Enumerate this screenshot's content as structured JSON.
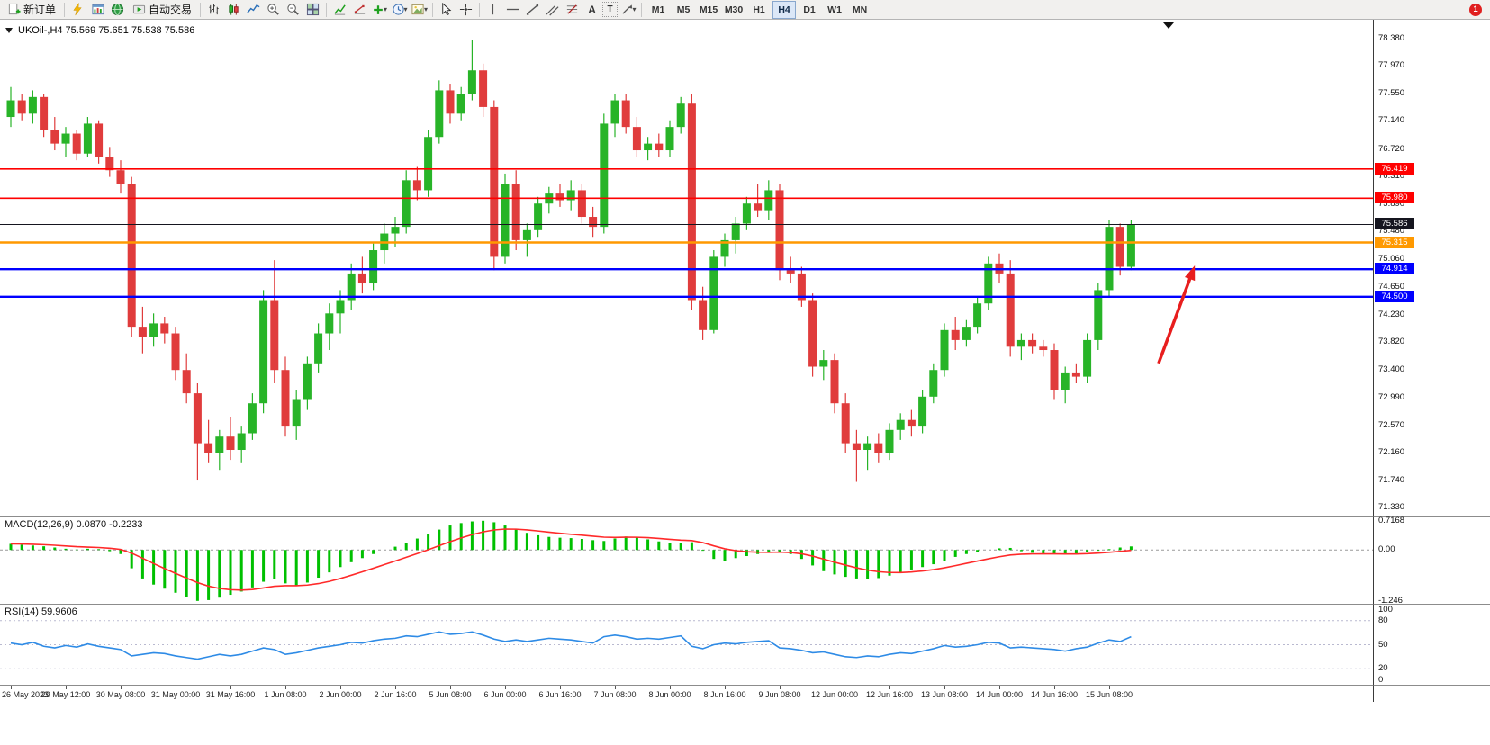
{
  "toolbar": {
    "new_order_label": "新订单",
    "auto_trading_label": "自动交易",
    "text_tool_label": "A",
    "label_tool_label": "T",
    "timeframes": [
      "M1",
      "M5",
      "M15",
      "M30",
      "H1",
      "H4",
      "D1",
      "W1",
      "MN"
    ],
    "active_timeframe": "H4",
    "notification_count": "1",
    "icon_names": [
      "new-order-icon",
      "lightning-icon",
      "chart-window-icon",
      "globe-icon",
      "auto-trading-icon",
      "bar-chart-icon",
      "candlestick-chart-icon",
      "line-chart-icon",
      "zoom-in-icon",
      "zoom-out-icon",
      "tile-windows-icon",
      "indicators-icon",
      "objects-icon",
      "add-indicator-icon",
      "clock-icon",
      "template-icon",
      "cursor-icon",
      "crosshair-icon",
      "vertical-line-icon",
      "horizontal-line-icon",
      "trendline-icon",
      "channel-icon",
      "fibonacci-icon",
      "text-icon",
      "label-icon",
      "arrow-shape-icon",
      "notification-badge"
    ]
  },
  "chart": {
    "title": "UKOil-,H4 75.569 75.651 75.538 75.586"
  },
  "indicators": {
    "macd_label": "MACD(12,26,9) 0.0870 -0.2233",
    "rsi_label": "RSI(14) 59.9606"
  },
  "chart_data": {
    "type": "candlestick",
    "symbol": "UKOil-",
    "timeframe": "H4",
    "current_ohlc": {
      "open": 75.569,
      "high": 75.651,
      "low": 75.538,
      "close": 75.586
    },
    "ylim": [
      71.2,
      78.66
    ],
    "price_axis_ticks": [
      78.38,
      77.97,
      77.55,
      77.14,
      76.72,
      76.31,
      75.89,
      75.48,
      75.06,
      74.65,
      74.23,
      73.82,
      73.4,
      72.99,
      72.57,
      72.16,
      71.74,
      71.33
    ],
    "colors": {
      "bull": "#28B428",
      "bear": "#E03C3C"
    },
    "hlines": [
      {
        "price": 76.419,
        "color": "#FF0000",
        "width": 1.6,
        "label": "76.419"
      },
      {
        "price": 75.98,
        "color": "#FF0000",
        "width": 1.6,
        "label": "75.980"
      },
      {
        "price": 75.586,
        "color": "#15151F",
        "width": 1,
        "label": "75.586"
      },
      {
        "price": 75.315,
        "color": "#FF9900",
        "width": 2.6,
        "label": "75.315"
      },
      {
        "price": 74.914,
        "color": "#0000FF",
        "width": 2.4,
        "label": "74.914"
      },
      {
        "price": 74.5,
        "color": "#0000FF",
        "width": 2.4,
        "label": "74.500"
      }
    ],
    "annotation_arrow": {
      "from_index": 104.5,
      "from_price": 73.5,
      "to_index": 107.8,
      "to_price": 74.97,
      "color": "#E81E1E"
    },
    "time_label_step": 5,
    "time_labels": [
      "26 May 2023",
      "29 May 12:00",
      "30 May 08:00",
      "31 May 00:00",
      "31 May 16:00",
      "1 Jun 08:00",
      "2 Jun 00:00",
      "2 Jun 16:00",
      "5 Jun 08:00",
      "6 Jun 00:00",
      "6 Jun 16:00",
      "7 Jun 08:00",
      "8 Jun 00:00",
      "8 Jun 16:00",
      "9 Jun 08:00",
      "12 Jun 00:00",
      "12 Jun 16:00",
      "13 Jun 08:00",
      "14 Jun 00:00",
      "14 Jun 16:00",
      "15 Jun 08:00"
    ],
    "candles": [
      [
        77.2,
        77.65,
        77.05,
        77.45
      ],
      [
        77.45,
        77.55,
        77.15,
        77.25
      ],
      [
        77.25,
        77.6,
        77.1,
        77.5
      ],
      [
        77.5,
        77.55,
        76.9,
        77.0
      ],
      [
        77.0,
        77.2,
        76.7,
        76.8
      ],
      [
        76.8,
        77.05,
        76.6,
        76.95
      ],
      [
        76.95,
        77.0,
        76.55,
        76.65
      ],
      [
        76.65,
        77.2,
        76.6,
        77.1
      ],
      [
        77.1,
        77.15,
        76.5,
        76.6
      ],
      [
        76.6,
        76.75,
        76.3,
        76.4
      ],
      [
        76.4,
        76.55,
        76.05,
        76.2
      ],
      [
        76.2,
        76.3,
        73.9,
        74.05
      ],
      [
        74.05,
        74.35,
        73.65,
        73.9
      ],
      [
        73.9,
        74.25,
        73.75,
        74.1
      ],
      [
        74.1,
        74.2,
        73.8,
        73.95
      ],
      [
        73.95,
        74.05,
        73.25,
        73.4
      ],
      [
        73.4,
        73.65,
        72.9,
        73.05
      ],
      [
        73.05,
        73.2,
        71.74,
        72.3
      ],
      [
        72.3,
        72.65,
        72.0,
        72.15
      ],
      [
        72.15,
        72.5,
        71.9,
        72.4
      ],
      [
        72.4,
        72.7,
        72.05,
        72.2
      ],
      [
        72.2,
        72.55,
        72.0,
        72.45
      ],
      [
        72.45,
        73.05,
        72.35,
        72.9
      ],
      [
        72.9,
        74.6,
        72.75,
        74.45
      ],
      [
        74.45,
        75.05,
        73.2,
        73.4
      ],
      [
        73.4,
        73.6,
        72.4,
        72.55
      ],
      [
        72.55,
        73.1,
        72.35,
        72.95
      ],
      [
        72.95,
        73.6,
        72.8,
        73.5
      ],
      [
        73.5,
        74.1,
        73.35,
        73.95
      ],
      [
        73.95,
        74.4,
        73.7,
        74.25
      ],
      [
        74.25,
        74.6,
        73.95,
        74.45
      ],
      [
        74.45,
        75.0,
        74.3,
        74.85
      ],
      [
        74.85,
        75.1,
        74.55,
        74.7
      ],
      [
        74.7,
        75.3,
        74.6,
        75.2
      ],
      [
        75.2,
        75.6,
        75.0,
        75.45
      ],
      [
        75.45,
        75.7,
        75.25,
        75.55
      ],
      [
        75.55,
        76.4,
        75.45,
        76.25
      ],
      [
        76.25,
        76.45,
        75.95,
        76.1
      ],
      [
        76.1,
        77.0,
        76.0,
        76.9
      ],
      [
        76.9,
        77.75,
        76.8,
        77.6
      ],
      [
        77.6,
        77.7,
        77.1,
        77.25
      ],
      [
        77.25,
        77.65,
        77.15,
        77.55
      ],
      [
        77.55,
        78.35,
        77.45,
        77.9
      ],
      [
        77.9,
        78.0,
        77.2,
        77.35
      ],
      [
        77.35,
        77.45,
        74.9,
        75.1
      ],
      [
        75.1,
        76.35,
        75.0,
        76.2
      ],
      [
        76.2,
        76.4,
        75.2,
        75.35
      ],
      [
        75.35,
        75.6,
        75.1,
        75.5
      ],
      [
        75.5,
        76.0,
        75.4,
        75.9
      ],
      [
        75.9,
        76.15,
        75.75,
        76.05
      ],
      [
        76.05,
        76.2,
        75.85,
        75.95
      ],
      [
        75.95,
        76.25,
        75.8,
        76.1
      ],
      [
        76.1,
        76.2,
        75.6,
        75.7
      ],
      [
        75.7,
        75.85,
        75.4,
        75.55
      ],
      [
        75.55,
        77.25,
        75.45,
        77.1
      ],
      [
        77.1,
        77.55,
        76.9,
        77.45
      ],
      [
        77.45,
        77.55,
        76.95,
        77.05
      ],
      [
        77.05,
        77.2,
        76.6,
        76.7
      ],
      [
        76.7,
        76.9,
        76.55,
        76.8
      ],
      [
        76.8,
        76.95,
        76.6,
        76.7
      ],
      [
        76.7,
        77.15,
        76.6,
        77.05
      ],
      [
        77.05,
        77.5,
        76.95,
        77.4
      ],
      [
        77.4,
        77.55,
        74.3,
        74.45
      ],
      [
        74.45,
        74.65,
        73.85,
        74.0
      ],
      [
        74.0,
        75.2,
        73.95,
        75.1
      ],
      [
        75.1,
        75.45,
        74.95,
        75.35
      ],
      [
        75.35,
        75.7,
        75.15,
        75.6
      ],
      [
        75.6,
        76.0,
        75.5,
        75.9
      ],
      [
        75.9,
        76.2,
        75.7,
        75.8
      ],
      [
        75.8,
        76.25,
        75.65,
        76.1
      ],
      [
        76.1,
        76.2,
        74.75,
        74.9
      ],
      [
        74.9,
        75.1,
        74.7,
        74.85
      ],
      [
        74.85,
        74.95,
        74.35,
        74.45
      ],
      [
        74.45,
        74.55,
        73.3,
        73.45
      ],
      [
        73.45,
        73.7,
        73.25,
        73.55
      ],
      [
        73.55,
        73.65,
        72.75,
        72.9
      ],
      [
        72.9,
        73.05,
        72.15,
        72.3
      ],
      [
        72.3,
        72.5,
        71.72,
        72.2
      ],
      [
        72.2,
        72.4,
        71.9,
        72.3
      ],
      [
        72.3,
        72.45,
        72.0,
        72.15
      ],
      [
        72.15,
        72.6,
        72.05,
        72.5
      ],
      [
        72.5,
        72.75,
        72.35,
        72.65
      ],
      [
        72.65,
        72.8,
        72.4,
        72.55
      ],
      [
        72.55,
        73.1,
        72.45,
        73.0
      ],
      [
        73.0,
        73.5,
        72.9,
        73.4
      ],
      [
        73.4,
        74.1,
        73.3,
        74.0
      ],
      [
        74.0,
        74.2,
        73.7,
        73.85
      ],
      [
        73.85,
        74.15,
        73.75,
        74.05
      ],
      [
        74.05,
        74.5,
        73.95,
        74.4
      ],
      [
        74.4,
        75.1,
        74.3,
        75.0
      ],
      [
        75.0,
        75.15,
        74.7,
        74.85
      ],
      [
        74.85,
        75.05,
        73.6,
        73.75
      ],
      [
        73.75,
        73.95,
        73.55,
        73.85
      ],
      [
        73.85,
        73.95,
        73.65,
        73.75
      ],
      [
        73.75,
        73.85,
        73.6,
        73.7
      ],
      [
        73.7,
        73.8,
        72.95,
        73.1
      ],
      [
        73.1,
        73.45,
        72.9,
        73.35
      ],
      [
        73.35,
        73.5,
        73.2,
        73.3
      ],
      [
        73.3,
        73.95,
        73.2,
        73.85
      ],
      [
        73.85,
        74.7,
        73.7,
        74.6
      ],
      [
        74.6,
        75.65,
        74.5,
        75.55
      ],
      [
        75.55,
        75.6,
        74.82,
        74.95
      ],
      [
        74.95,
        75.651,
        74.9,
        75.586
      ]
    ],
    "macd": {
      "name": "MACD",
      "params": "12,26,9",
      "value_main": 0.087,
      "value_signal": -0.2233,
      "ylim": [
        -1.32,
        0.8
      ],
      "axis_ticks": [
        "0.7168",
        "0.00",
        "-1.246"
      ],
      "axis_tick_values": [
        0.7168,
        0,
        -1.246
      ],
      "histogram_color": "#00C000",
      "signal_color": "#FF2A2A",
      "values": [
        0.15,
        0.13,
        0.11,
        0.09,
        0.06,
        0.03,
        0.01,
        0.03,
        0.02,
        -0.03,
        -0.1,
        -0.45,
        -0.7,
        -0.85,
        -0.95,
        -1.05,
        -1.15,
        -1.25,
        -1.23,
        -1.17,
        -1.1,
        -1.02,
        -0.92,
        -0.78,
        -0.72,
        -0.82,
        -0.88,
        -0.8,
        -0.68,
        -0.55,
        -0.42,
        -0.3,
        -0.2,
        -0.1,
        0.0,
        0.08,
        0.18,
        0.28,
        0.38,
        0.5,
        0.6,
        0.66,
        0.7,
        0.716,
        0.68,
        0.6,
        0.5,
        0.42,
        0.36,
        0.32,
        0.3,
        0.29,
        0.27,
        0.24,
        0.22,
        0.28,
        0.33,
        0.31,
        0.26,
        0.21,
        0.17,
        0.16,
        0.19,
        -0.02,
        -0.22,
        -0.26,
        -0.2,
        -0.15,
        -0.1,
        -0.06,
        -0.04,
        -0.1,
        -0.22,
        -0.38,
        -0.52,
        -0.6,
        -0.66,
        -0.7,
        -0.72,
        -0.69,
        -0.63,
        -0.56,
        -0.48,
        -0.42,
        -0.35,
        -0.26,
        -0.17,
        -0.1,
        -0.05,
        0.0,
        0.04,
        0.05,
        -0.03,
        -0.07,
        -0.09,
        -0.1,
        -0.11,
        -0.09,
        -0.06,
        -0.02,
        0.02,
        0.06,
        0.087
      ]
    },
    "rsi": {
      "name": "RSI",
      "period": 14,
      "value": 59.9606,
      "ylim": [
        0,
        100
      ],
      "axis_ticks": [
        100,
        80,
        50,
        20,
        0
      ],
      "levels": [
        80,
        50,
        20
      ],
      "line_color": "#2E8BE6",
      "values": [
        52,
        50,
        53,
        48,
        46,
        49,
        47,
        51,
        48,
        46,
        44,
        36,
        38,
        40,
        39,
        36,
        34,
        32,
        35,
        38,
        36,
        38,
        42,
        46,
        44,
        38,
        40,
        43,
        46,
        48,
        50,
        53,
        52,
        55,
        57,
        58,
        61,
        60,
        63,
        66,
        63,
        64,
        66,
        62,
        57,
        54,
        56,
        54,
        56,
        58,
        57,
        56,
        54,
        52,
        60,
        62,
        60,
        57,
        58,
        57,
        59,
        61,
        48,
        45,
        50,
        52,
        51,
        53,
        54,
        55,
        46,
        45,
        43,
        40,
        41,
        38,
        35,
        34,
        36,
        35,
        38,
        40,
        39,
        42,
        45,
        49,
        47,
        48,
        50,
        53,
        52,
        46,
        47,
        46,
        45,
        44,
        42,
        45,
        47,
        52,
        56,
        54,
        60
      ]
    }
  }
}
